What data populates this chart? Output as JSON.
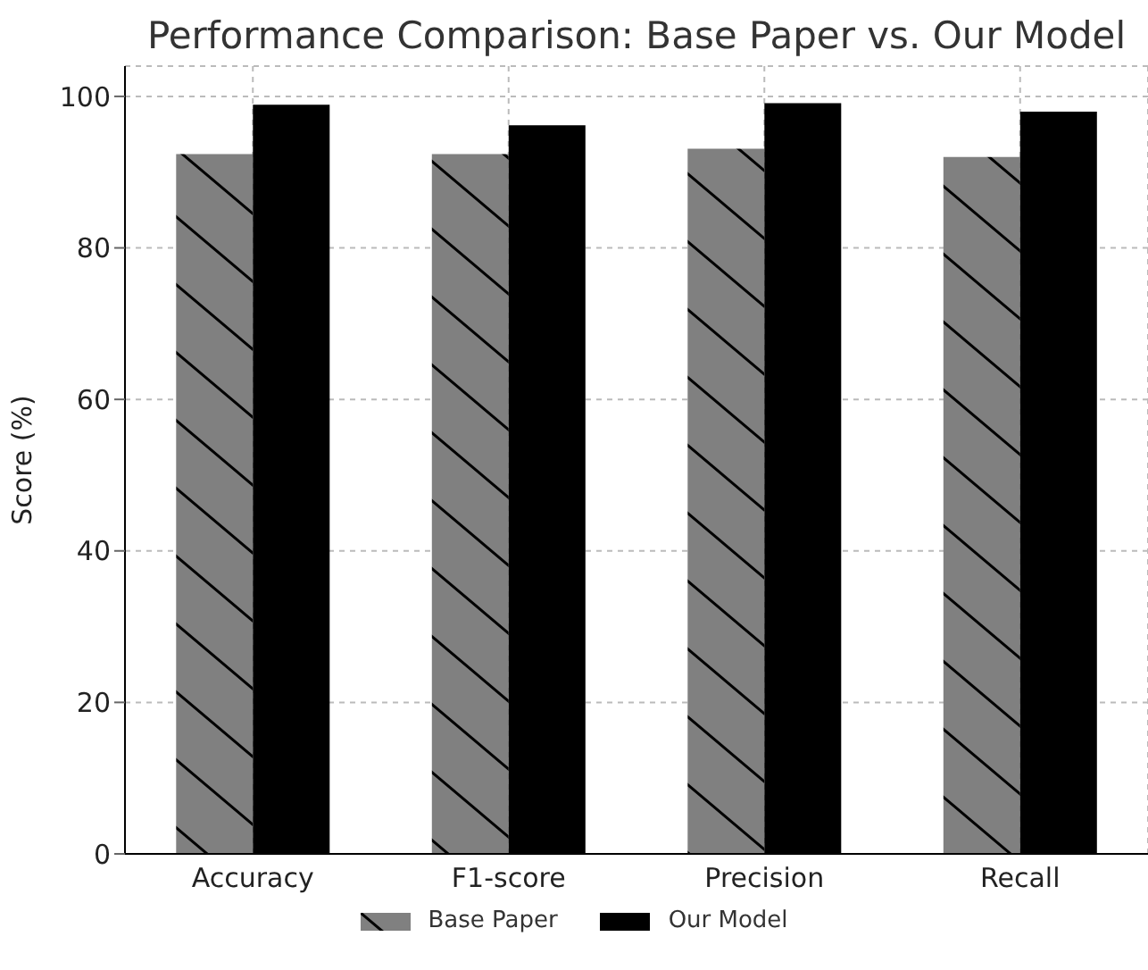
{
  "chart_data": {
    "type": "bar",
    "title": "Performance Comparison: Base Paper vs. Our Model",
    "ylabel": "Score (%)",
    "categories": [
      "Accuracy",
      "F1-score",
      "Precision",
      "Recall"
    ],
    "series": [
      {
        "name": "Base Paper",
        "color": "#808080",
        "values": [
          92.4,
          92.4,
          93.1,
          92.0
        ]
      },
      {
        "name": "Our Model",
        "color": "#000000",
        "values": [
          98.9,
          96.2,
          99.1,
          98.0
        ]
      }
    ],
    "ylim": [
      0,
      104
    ],
    "yticks": [
      0,
      20,
      40,
      60,
      80,
      100
    ],
    "grid": true,
    "legend": "bottom"
  }
}
